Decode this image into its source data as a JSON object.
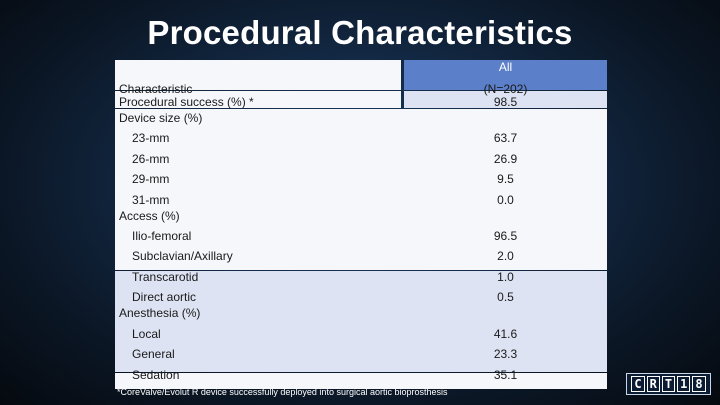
{
  "title": "Procedural Characteristics",
  "table": {
    "column_header": "All",
    "column_n": "(N=202)",
    "characteristic_header": "Characteristic",
    "rows": [
      {
        "label": "Procedural success (%) *",
        "value": "98.5"
      },
      {
        "label": "Device size (%)",
        "value": ""
      },
      {
        "label": "23-mm",
        "value": "63.7"
      },
      {
        "label": "26-mm",
        "value": "26.9"
      },
      {
        "label": "29-mm",
        "value": "9.5"
      },
      {
        "label": "31-mm",
        "value": "0.0"
      },
      {
        "label": "Access (%)",
        "value": ""
      },
      {
        "label": "Ilio-femoral",
        "value": "96.5"
      },
      {
        "label": "Subclavian/Axillary",
        "value": "2.0"
      },
      {
        "label": "Transcarotid",
        "value": "1.0"
      },
      {
        "label": "Direct aortic",
        "value": "0.5"
      },
      {
        "label": "Anesthesia (%)",
        "value": ""
      },
      {
        "label": "Local",
        "value": "41.6"
      },
      {
        "label": "General",
        "value": "23.3"
      },
      {
        "label": "Sedation",
        "value": "35.1"
      }
    ]
  },
  "footnote": "*CoreValve/Evolut R device successfully deployed into surgical aortic bioprosthesis",
  "logo": {
    "letters": [
      "C",
      "R",
      "T",
      "1",
      "8"
    ]
  }
}
